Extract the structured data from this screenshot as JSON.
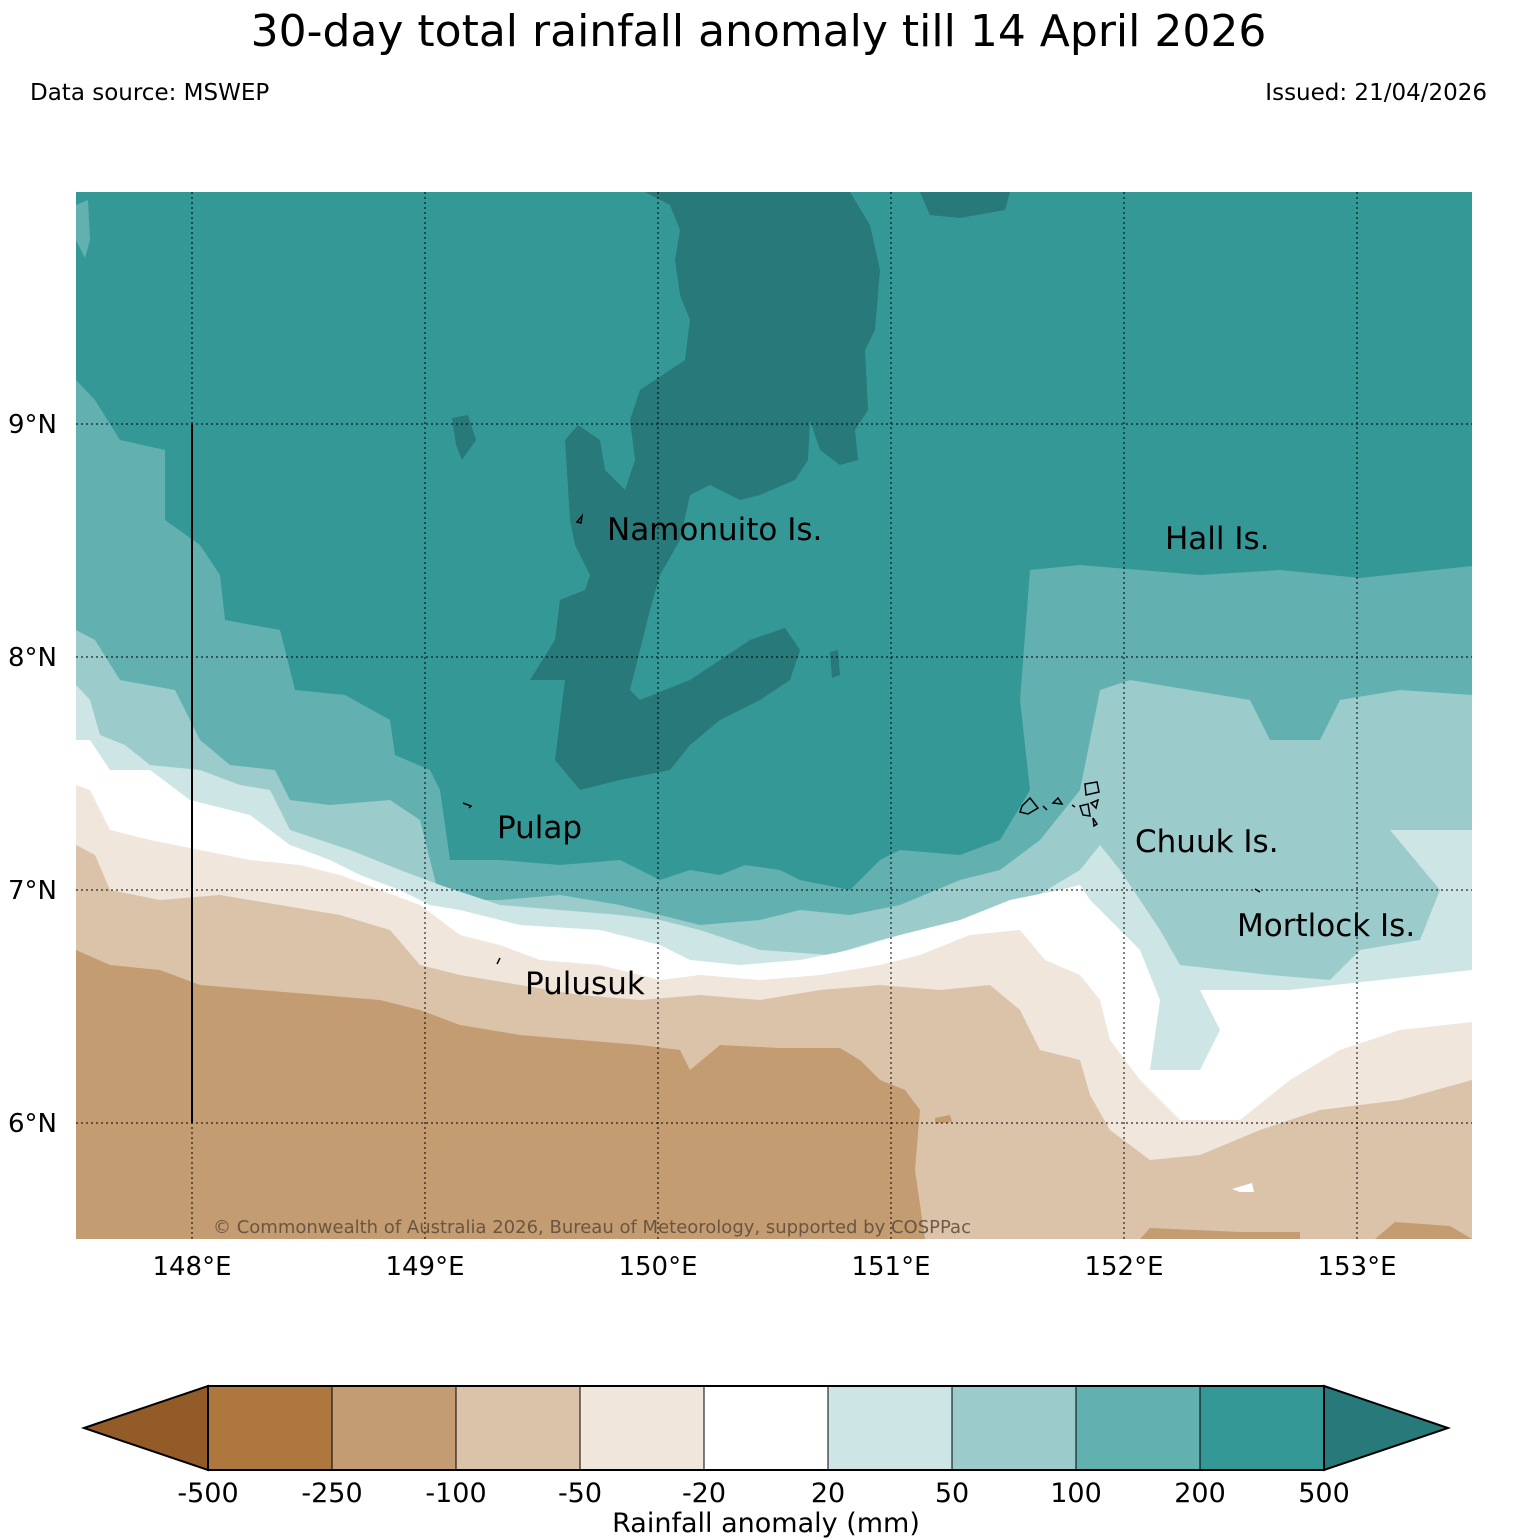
{
  "header": {
    "title": "30-day total rainfall anomaly till 14 April 2026",
    "data_source": "Data source: MSWEP",
    "issued": "Issued: 21/04/2026"
  },
  "map": {
    "lat_labels": [
      "9°N",
      "8°N",
      "7°N",
      "6°N"
    ],
    "lon_labels": [
      "148°E",
      "149°E",
      "150°E",
      "151°E",
      "152°E",
      "153°E"
    ],
    "places": [
      "Namonuito Is.",
      "Hall Is.",
      "Pulap",
      "Chuuk Is.",
      "Mortlock Is.",
      "Pulusuk"
    ],
    "copyright": "© Commonwealth of Australia 2026, Bureau of Meteorology, supported by COSPPac"
  },
  "colorbar": {
    "title": "Rainfall anomaly (mm)",
    "ticks": [
      "-500",
      "-250",
      "-100",
      "-50",
      "-20",
      "20",
      "50",
      "100",
      "200",
      "500"
    ],
    "colors": [
      "#935b28",
      "#ad773d",
      "#c49c72",
      "#dbc3aa",
      "#f0e6dc",
      "#ffffff",
      "#cde6e5",
      "#9ccbcb",
      "#62b0b0",
      "#349896",
      "#287979"
    ]
  }
}
